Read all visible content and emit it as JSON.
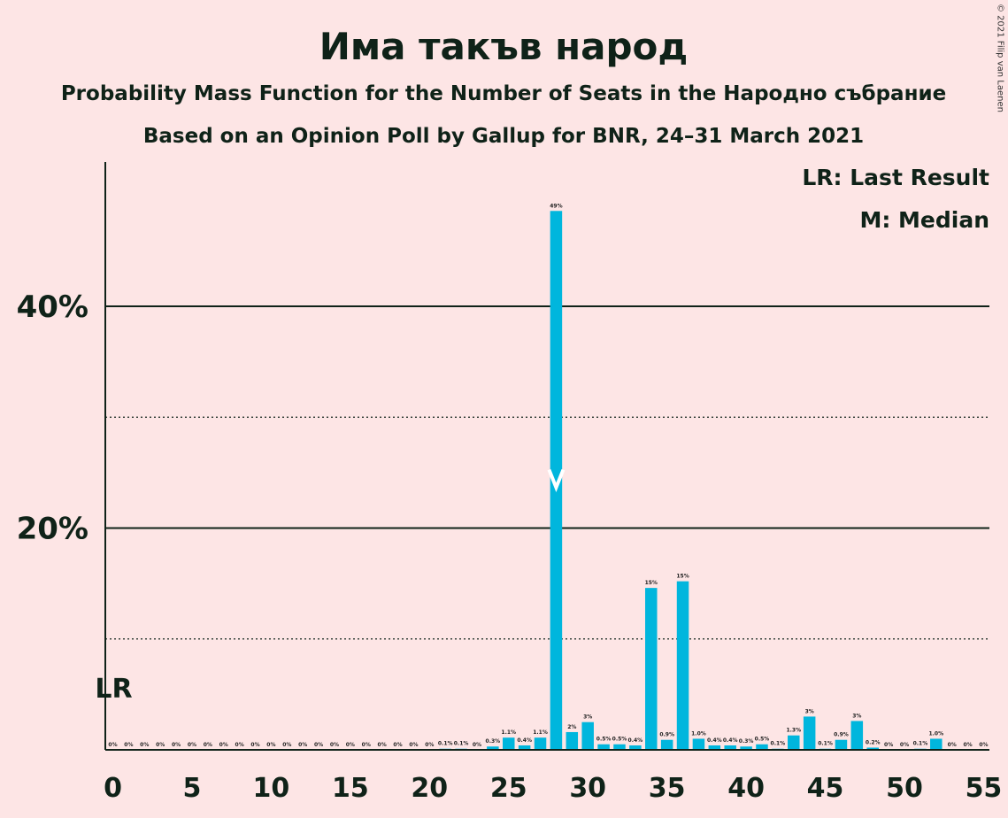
{
  "title": "Има такъв народ",
  "subtitle1": "Probability Mass Function for the Number of Seats in the Народно събрание",
  "subtitle2": "Based on an Opinion Poll by Gallup for BNR, 24–31 March 2021",
  "copyright": "© 2021 Filip van Laenen",
  "legend": {
    "lr": "LR: Last Result",
    "m": "M: Median"
  },
  "colors": {
    "background": "#fde5e5",
    "bar": "#00b6dd",
    "text": "#0f2218"
  },
  "chart_data": {
    "type": "bar",
    "title": "Има такъв народ",
    "xlabel": "",
    "ylabel": "",
    "xlim": [
      0,
      55
    ],
    "ylim": [
      0,
      53
    ],
    "x_ticks": [
      0,
      5,
      10,
      15,
      20,
      25,
      30,
      35,
      40,
      45,
      50,
      55
    ],
    "y_ticks": [
      {
        "value": 20,
        "label": "20%"
      },
      {
        "value": 40,
        "label": "40%"
      }
    ],
    "y_dotted_gridlines": [
      10,
      30
    ],
    "last_result": {
      "seat": 0,
      "label": "LR"
    },
    "median": {
      "seat": 28,
      "label": "M"
    },
    "bars": [
      {
        "seat": 0,
        "value": 0,
        "label": "0%"
      },
      {
        "seat": 1,
        "value": 0,
        "label": "0%"
      },
      {
        "seat": 2,
        "value": 0,
        "label": "0%"
      },
      {
        "seat": 3,
        "value": 0,
        "label": "0%"
      },
      {
        "seat": 4,
        "value": 0,
        "label": "0%"
      },
      {
        "seat": 5,
        "value": 0,
        "label": "0%"
      },
      {
        "seat": 6,
        "value": 0,
        "label": "0%"
      },
      {
        "seat": 7,
        "value": 0,
        "label": "0%"
      },
      {
        "seat": 8,
        "value": 0,
        "label": "0%"
      },
      {
        "seat": 9,
        "value": 0,
        "label": "0%"
      },
      {
        "seat": 10,
        "value": 0,
        "label": "0%"
      },
      {
        "seat": 11,
        "value": 0,
        "label": "0%"
      },
      {
        "seat": 12,
        "value": 0,
        "label": "0%"
      },
      {
        "seat": 13,
        "value": 0,
        "label": "0%"
      },
      {
        "seat": 14,
        "value": 0,
        "label": "0%"
      },
      {
        "seat": 15,
        "value": 0,
        "label": "0%"
      },
      {
        "seat": 16,
        "value": 0,
        "label": "0%"
      },
      {
        "seat": 17,
        "value": 0,
        "label": "0%"
      },
      {
        "seat": 18,
        "value": 0,
        "label": "0%"
      },
      {
        "seat": 19,
        "value": 0,
        "label": "0%"
      },
      {
        "seat": 20,
        "value": 0,
        "label": "0%"
      },
      {
        "seat": 21,
        "value": 0.1,
        "label": "0.1%"
      },
      {
        "seat": 22,
        "value": 0.1,
        "label": "0.1%"
      },
      {
        "seat": 23,
        "value": 0,
        "label": "0%"
      },
      {
        "seat": 24,
        "value": 0.3,
        "label": "0.3%"
      },
      {
        "seat": 25,
        "value": 1.1,
        "label": "1.1%"
      },
      {
        "seat": 26,
        "value": 0.4,
        "label": "0.4%"
      },
      {
        "seat": 27,
        "value": 1.1,
        "label": "1.1%"
      },
      {
        "seat": 28,
        "value": 48.6,
        "label": "49%"
      },
      {
        "seat": 29,
        "value": 1.6,
        "label": "2%"
      },
      {
        "seat": 30,
        "value": 2.5,
        "label": "3%"
      },
      {
        "seat": 31,
        "value": 0.5,
        "label": "0.5%"
      },
      {
        "seat": 32,
        "value": 0.5,
        "label": "0.5%"
      },
      {
        "seat": 33,
        "value": 0.4,
        "label": "0.4%"
      },
      {
        "seat": 34,
        "value": 14.6,
        "label": "15%"
      },
      {
        "seat": 35,
        "value": 0.9,
        "label": "0.9%"
      },
      {
        "seat": 36,
        "value": 15.2,
        "label": "15%"
      },
      {
        "seat": 37,
        "value": 1.0,
        "label": "1.0%"
      },
      {
        "seat": 38,
        "value": 0.4,
        "label": "0.4%"
      },
      {
        "seat": 39,
        "value": 0.4,
        "label": "0.4%"
      },
      {
        "seat": 40,
        "value": 0.3,
        "label": "0.3%"
      },
      {
        "seat": 41,
        "value": 0.5,
        "label": "0.5%"
      },
      {
        "seat": 42,
        "value": 0.1,
        "label": "0.1%"
      },
      {
        "seat": 43,
        "value": 1.3,
        "label": "1.3%"
      },
      {
        "seat": 44,
        "value": 3.0,
        "label": "3%"
      },
      {
        "seat": 45,
        "value": 0.1,
        "label": "0.1%"
      },
      {
        "seat": 46,
        "value": 0.9,
        "label": "0.9%"
      },
      {
        "seat": 47,
        "value": 2.6,
        "label": "3%"
      },
      {
        "seat": 48,
        "value": 0.2,
        "label": "0.2%"
      },
      {
        "seat": 49,
        "value": 0,
        "label": "0%"
      },
      {
        "seat": 50,
        "value": 0,
        "label": "0%"
      },
      {
        "seat": 51,
        "value": 0.1,
        "label": "0.1%"
      },
      {
        "seat": 52,
        "value": 1.0,
        "label": "1.0%"
      },
      {
        "seat": 53,
        "value": 0,
        "label": "0%"
      },
      {
        "seat": 54,
        "value": 0,
        "label": "0%"
      },
      {
        "seat": 55,
        "value": 0,
        "label": "0%"
      }
    ]
  }
}
